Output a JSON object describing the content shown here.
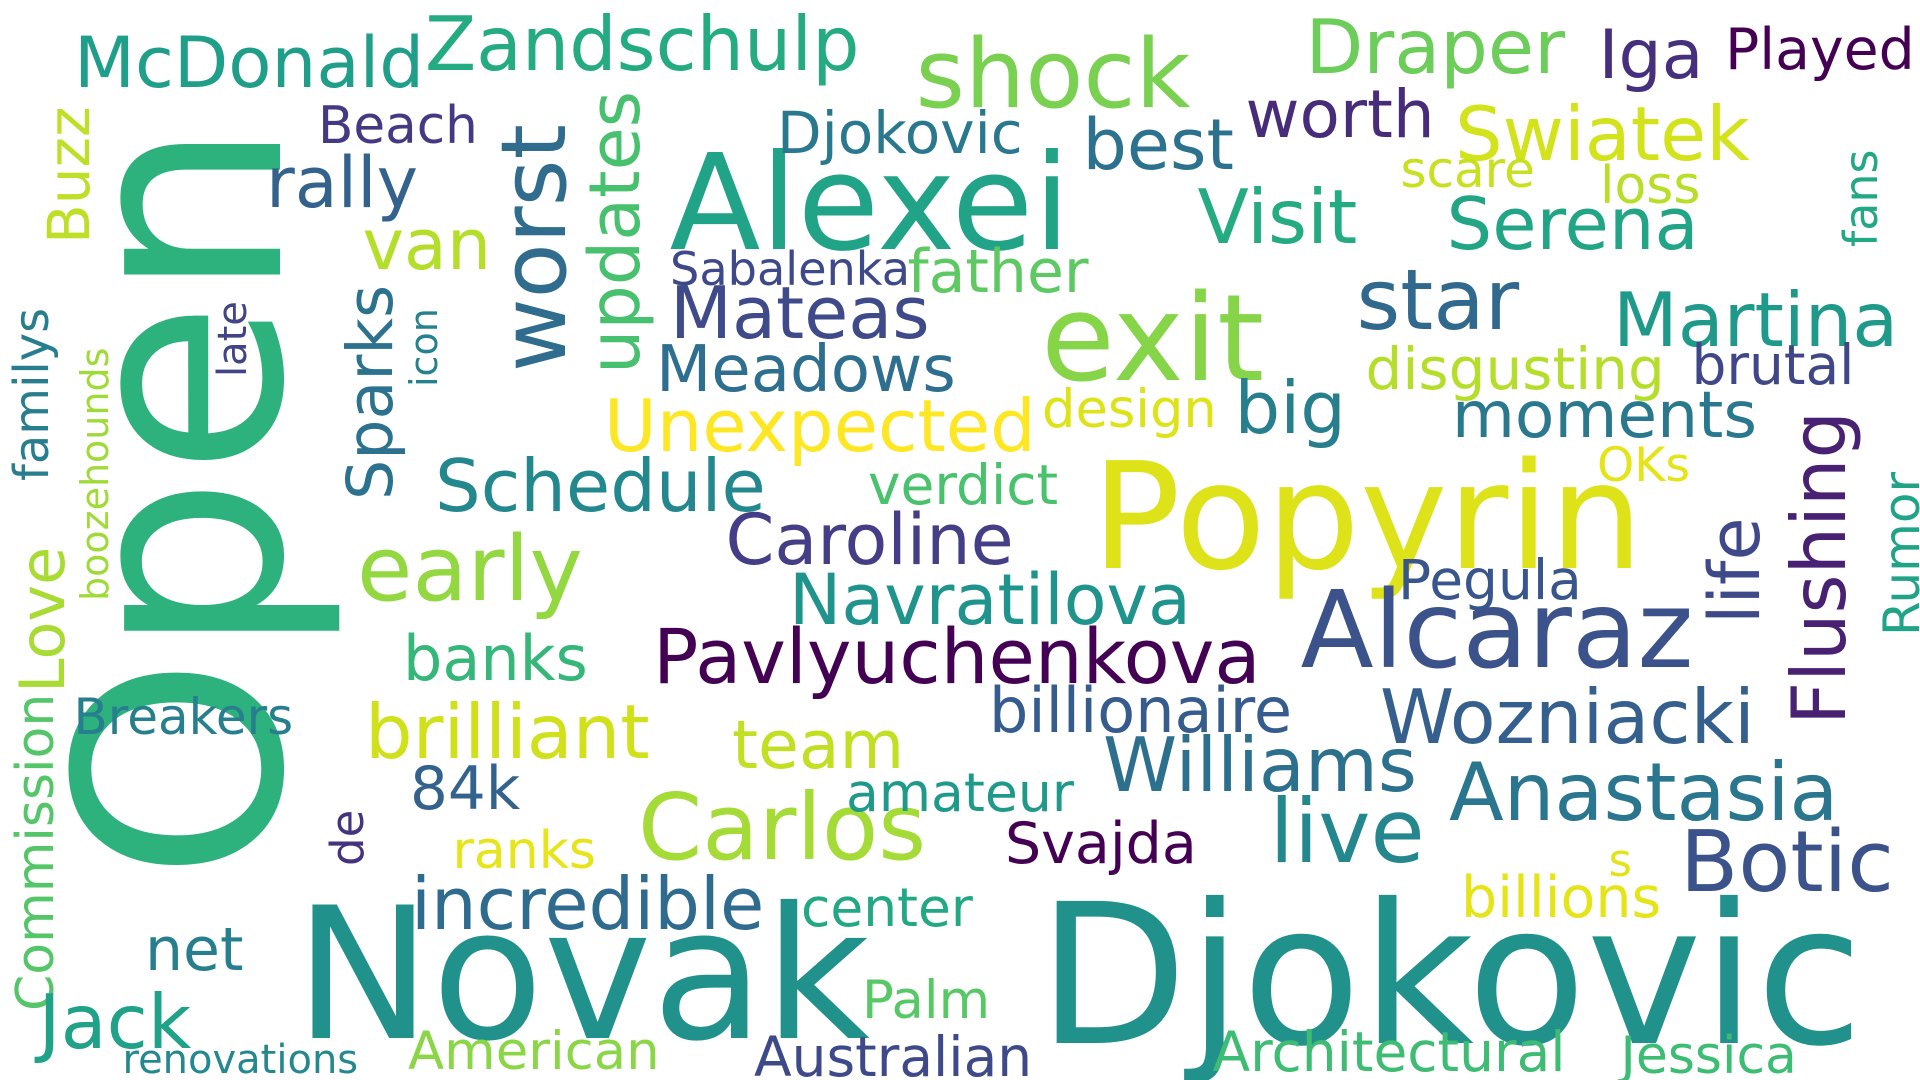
{
  "words": [
    {
      "text": "Open",
      "color": "#2db27d",
      "vertical": true
    },
    {
      "text": "Novak",
      "color": "#21918c",
      "vertical": false
    },
    {
      "text": "Djokovic",
      "color": "#21918c",
      "vertical": false
    },
    {
      "text": "Popyrin",
      "color": "#dde318",
      "vertical": false
    },
    {
      "text": "Alexei",
      "color": "#20a386",
      "vertical": false
    },
    {
      "text": "exit",
      "color": "#86d549",
      "vertical": false
    },
    {
      "text": "worst",
      "color": "#2f6c8e",
      "vertical": true
    },
    {
      "text": "shock",
      "color": "#7ad151",
      "vertical": false
    },
    {
      "text": "Alcaraz",
      "color": "#3b528b",
      "vertical": false
    },
    {
      "text": "star",
      "color": "#31688e",
      "vertical": false
    },
    {
      "text": "Carlos",
      "color": "#a5db36",
      "vertical": false
    },
    {
      "text": "Zandschulp",
      "color": "#25ab82",
      "vertical": false
    },
    {
      "text": "McDonald",
      "color": "#1f9e89",
      "vertical": false
    },
    {
      "text": "Draper",
      "color": "#6ccd5a",
      "vertical": false
    },
    {
      "text": "Iga",
      "color": "#46307e",
      "vertical": false
    },
    {
      "text": "Played",
      "color": "#440154",
      "vertical": false
    },
    {
      "text": "Swiatek",
      "color": "#d2e21b",
      "vertical": false
    },
    {
      "text": "updates",
      "color": "#48c16e",
      "vertical": true
    },
    {
      "text": "best",
      "color": "#2c728e",
      "vertical": false
    },
    {
      "text": "worth",
      "color": "#472c7a",
      "vertical": false
    },
    {
      "text": "rally",
      "color": "#33638d",
      "vertical": false
    },
    {
      "text": "Beach",
      "color": "#443a83",
      "vertical": false
    },
    {
      "text": "Djokovic",
      "color": "#2a788e",
      "vertical": false
    },
    {
      "text": "Visit",
      "color": "#25ab82",
      "vertical": false
    },
    {
      "text": "Serena",
      "color": "#21a585",
      "vertical": false
    },
    {
      "text": "scare",
      "color": "#c8e020",
      "vertical": false
    },
    {
      "text": "loss",
      "color": "#b8de29",
      "vertical": false
    },
    {
      "text": "fans",
      "color": "#22a884",
      "vertical": true
    },
    {
      "text": "Buzz",
      "color": "#bddf26",
      "vertical": true
    },
    {
      "text": "van",
      "color": "#b5de2b",
      "vertical": false
    },
    {
      "text": "Sabalenka",
      "color": "#3e4989",
      "vertical": false
    },
    {
      "text": "father",
      "color": "#5ec962",
      "vertical": false
    },
    {
      "text": "Mateas",
      "color": "#3e4a89",
      "vertical": false
    },
    {
      "text": "Meadows",
      "color": "#2e6e8e",
      "vertical": false
    },
    {
      "text": "Martina",
      "color": "#1f9a8a",
      "vertical": false
    },
    {
      "text": "disgusting",
      "color": "#b5de2b",
      "vertical": false
    },
    {
      "text": "brutal",
      "color": "#3f4788",
      "vertical": false
    },
    {
      "text": "Sparks",
      "color": "#2c718e",
      "vertical": true
    },
    {
      "text": "icon",
      "color": "#26818e",
      "vertical": true
    },
    {
      "text": "late",
      "color": "#414487",
      "vertical": true
    },
    {
      "text": "familys",
      "color": "#287d8e",
      "vertical": true
    },
    {
      "text": "boozehounds",
      "color": "#a0da39",
      "vertical": true
    },
    {
      "text": "big",
      "color": "#277f8e",
      "vertical": false
    },
    {
      "text": "design",
      "color": "#dde318",
      "vertical": false
    },
    {
      "text": "Unexpected",
      "color": "#fde725",
      "vertical": false
    },
    {
      "text": "moments",
      "color": "#2a788e",
      "vertical": false
    },
    {
      "text": "Schedule",
      "color": "#23888e",
      "vertical": false
    },
    {
      "text": "verdict",
      "color": "#4ac16d",
      "vertical": false
    },
    {
      "text": "OKs",
      "color": "#e5e419",
      "vertical": false
    },
    {
      "text": "Flushing",
      "color": "#482173",
      "vertical": true
    },
    {
      "text": "Rumor",
      "color": "#20a386",
      "vertical": true
    },
    {
      "text": "life",
      "color": "#3e4989",
      "vertical": true
    },
    {
      "text": "early",
      "color": "#93d741",
      "vertical": false
    },
    {
      "text": "Caroline",
      "color": "#433e85",
      "vertical": false
    },
    {
      "text": "Navratilova",
      "color": "#1f948c",
      "vertical": false
    },
    {
      "text": "Pegula",
      "color": "#39568c",
      "vertical": false
    },
    {
      "text": "Love",
      "color": "#a8db34",
      "vertical": true
    },
    {
      "text": "banks",
      "color": "#35b779",
      "vertical": false
    },
    {
      "text": "Pavlyuchenkova",
      "color": "#440154",
      "vertical": false
    },
    {
      "text": "billionaire",
      "color": "#365c8d",
      "vertical": false
    },
    {
      "text": "Wozniacki",
      "color": "#355f8d",
      "vertical": false
    },
    {
      "text": "Breakers",
      "color": "#277f8e",
      "vertical": false
    },
    {
      "text": "brilliant",
      "color": "#d0e11c",
      "vertical": false
    },
    {
      "text": "team",
      "color": "#c2df23",
      "vertical": false
    },
    {
      "text": "Williams",
      "color": "#2d708e",
      "vertical": false
    },
    {
      "text": "Anastasia",
      "color": "#2a768e",
      "vertical": false
    },
    {
      "text": "84k",
      "color": "#33638d",
      "vertical": false
    },
    {
      "text": "amateur",
      "color": "#1f9a8a",
      "vertical": false
    },
    {
      "text": "de",
      "color": "#46337f",
      "vertical": true
    },
    {
      "text": "Commission",
      "color": "#54c568",
      "vertical": true
    },
    {
      "text": "ranks",
      "color": "#e7e419",
      "vertical": false
    },
    {
      "text": "Svajda",
      "color": "#440154",
      "vertical": false
    },
    {
      "text": "live",
      "color": "#24878e",
      "vertical": false
    },
    {
      "text": "Botic",
      "color": "#3b528b",
      "vertical": false
    },
    {
      "text": "incredible",
      "color": "#2f6b8e",
      "vertical": false
    },
    {
      "text": "center",
      "color": "#22a884",
      "vertical": false
    },
    {
      "text": "s",
      "color": "#e2e418",
      "vertical": false
    },
    {
      "text": "billions",
      "color": "#e5e419",
      "vertical": false
    },
    {
      "text": "net",
      "color": "#277f8e",
      "vertical": false
    },
    {
      "text": "Jack",
      "color": "#1fa287",
      "vertical": false
    },
    {
      "text": "Palm",
      "color": "#58c765",
      "vertical": false
    },
    {
      "text": "renovations",
      "color": "#23898e",
      "vertical": false
    },
    {
      "text": "American",
      "color": "#8bd646",
      "vertical": false
    },
    {
      "text": "Australian",
      "color": "#3e4989",
      "vertical": false
    },
    {
      "text": "Architectural",
      "color": "#3fbc73",
      "vertical": false
    },
    {
      "text": "Jessica",
      "color": "#3dbc74",
      "vertical": false
    }
  ]
}
